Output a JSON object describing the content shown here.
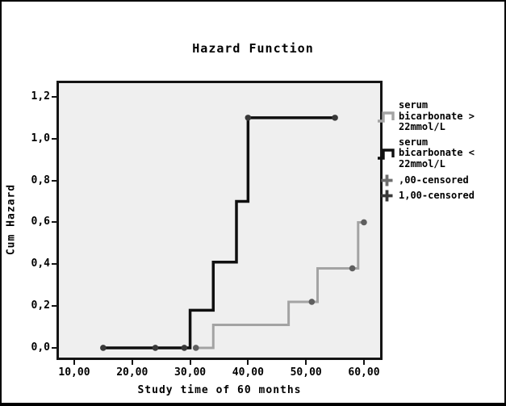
{
  "chart_data": {
    "type": "line",
    "subtype": "step-hazard",
    "title": "Hazard Function",
    "xlabel": "Study time of 60 months",
    "ylabel": "Cum Hazard",
    "xlim": [
      6.94,
      63.21
    ],
    "ylim": [
      -0.058,
      1.277
    ],
    "grid": false,
    "plot_bg": "#efefef",
    "frame_color": "#141414",
    "x_ticks": {
      "values": [
        10,
        20,
        30,
        40,
        50,
        60
      ],
      "labels": [
        "10,00",
        "20,00",
        "30,00",
        "40,00",
        "50,00",
        "60,00"
      ]
    },
    "y_ticks": {
      "values": [
        1.2,
        1.0,
        0.8,
        0.6,
        0.4,
        0.2,
        0.0
      ],
      "labels": [
        "1,2",
        "1,0",
        "0,8",
        "0,6",
        "0,4",
        "0,2",
        "0,0"
      ]
    },
    "series": [
      {
        "name": "serum bicarbonate > 22mmol/L",
        "color": "#a3a3a3",
        "marker_color": "#5f5f5f",
        "stroke_width": 3,
        "event_steps": [
          [
            34,
            0.11
          ],
          [
            47,
            0.22
          ],
          [
            52,
            0.38
          ],
          [
            59,
            0.6
          ]
        ],
        "polyline": [
          [
            31,
            0
          ],
          [
            34,
            0
          ],
          [
            34,
            0.11
          ],
          [
            47,
            0.11
          ],
          [
            47,
            0.22
          ],
          [
            52,
            0.22
          ],
          [
            52,
            0.38
          ],
          [
            59,
            0.38
          ],
          [
            59,
            0.6
          ],
          [
            60,
            0.6
          ]
        ],
        "censored": [
          [
            31,
            0
          ],
          [
            51,
            0.22
          ],
          [
            58,
            0.38
          ],
          [
            60,
            0.6
          ]
        ]
      },
      {
        "name": "serum bicarbonate < 22mmol/L",
        "color": "#0f0f0f",
        "marker_color": "#383838",
        "stroke_width": 3.5,
        "event_steps": [
          [
            30,
            0.18
          ],
          [
            34,
            0.41
          ],
          [
            38,
            0.7
          ],
          [
            40,
            1.1
          ]
        ],
        "polyline": [
          [
            15,
            0
          ],
          [
            30,
            0
          ],
          [
            30,
            0.18
          ],
          [
            34,
            0.18
          ],
          [
            34,
            0.41
          ],
          [
            38,
            0.41
          ],
          [
            38,
            0.7
          ],
          [
            40,
            0.7
          ],
          [
            40,
            1.1
          ],
          [
            55,
            1.1
          ]
        ],
        "censored": [
          [
            15,
            0
          ],
          [
            24,
            0
          ],
          [
            29,
            0
          ],
          [
            40,
            1.1
          ],
          [
            55,
            1.1
          ]
        ]
      }
    ],
    "legend": {
      "position": "right",
      "items": [
        {
          "label": "serum\nbicarbonate >\n22mmol/L",
          "symbol": "step-line",
          "color": "#a3a3a3"
        },
        {
          "label": "serum\nbicarbonate <\n22mmol/L",
          "symbol": "step-line",
          "color": "#0f0f0f"
        },
        {
          "label": ",00-censored",
          "symbol": "plus",
          "color": "#6e6e6e"
        },
        {
          "label": "1,00-censored",
          "symbol": "plus",
          "color": "#3a3a3a"
        }
      ]
    }
  }
}
